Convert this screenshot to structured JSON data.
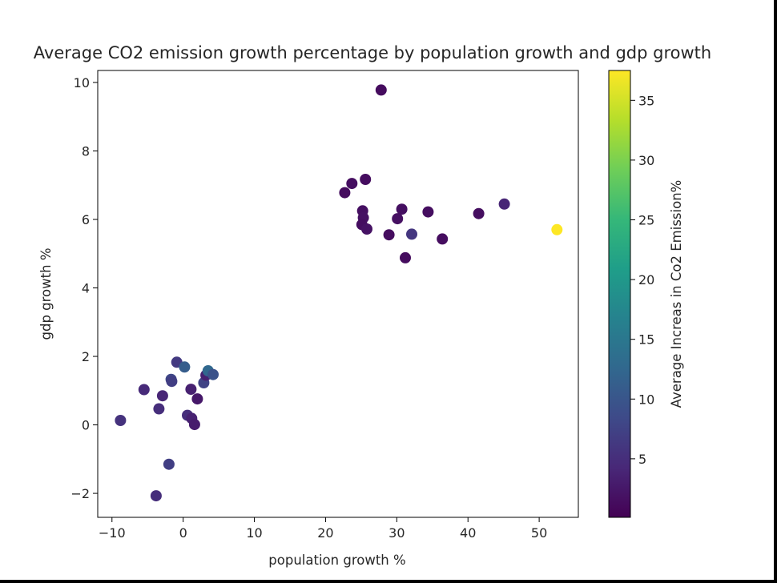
{
  "chart_data": {
    "type": "scatter",
    "title": "Average CO2 emission growth percentage by population growth and gdp growth",
    "xlabel": "population growth %",
    "ylabel": "gdp growth %",
    "xlim": [
      -12,
      55.5
    ],
    "ylim": [
      -2.7,
      10.35
    ],
    "xticks": [
      -10,
      0,
      10,
      20,
      30,
      40,
      50
    ],
    "yticks": [
      -2,
      0,
      2,
      4,
      6,
      8,
      10
    ],
    "xtick_labels": [
      "−10",
      "0",
      "10",
      "20",
      "30",
      "40",
      "50"
    ],
    "ytick_labels": [
      "−2",
      "0",
      "2",
      "4",
      "6",
      "8",
      "10"
    ],
    "grid": false,
    "colormap": "viridis",
    "colorbar": {
      "label": "Average Increas in Co2 Emission%",
      "range": [
        0.1,
        37.5
      ],
      "ticks": [
        5,
        10,
        15,
        20,
        25,
        30,
        35
      ],
      "tick_labels": [
        "5",
        "10",
        "15",
        "20",
        "25",
        "30",
        "35"
      ]
    },
    "points": [
      {
        "x": 27.8,
        "y": 9.78,
        "c": 1.2
      },
      {
        "x": 23.7,
        "y": 7.05,
        "c": 1.5
      },
      {
        "x": 25.6,
        "y": 7.17,
        "c": 1.4
      },
      {
        "x": 22.7,
        "y": 6.78,
        "c": 1.3
      },
      {
        "x": 25.2,
        "y": 6.25,
        "c": 1.6
      },
      {
        "x": 25.3,
        "y": 6.05,
        "c": 1.8
      },
      {
        "x": 25.1,
        "y": 5.85,
        "c": 1.5
      },
      {
        "x": 25.8,
        "y": 5.72,
        "c": 1.9
      },
      {
        "x": 28.9,
        "y": 5.55,
        "c": 1.4
      },
      {
        "x": 30.1,
        "y": 6.02,
        "c": 1.7
      },
      {
        "x": 30.7,
        "y": 6.3,
        "c": 1.6
      },
      {
        "x": 31.2,
        "y": 4.88,
        "c": 1.3
      },
      {
        "x": 32.1,
        "y": 5.57,
        "c": 6.0
      },
      {
        "x": 34.4,
        "y": 6.22,
        "c": 1.5
      },
      {
        "x": 36.4,
        "y": 5.43,
        "c": 1.4
      },
      {
        "x": 41.5,
        "y": 6.17,
        "c": 1.5
      },
      {
        "x": 45.1,
        "y": 6.45,
        "c": 4.0
      },
      {
        "x": 52.5,
        "y": 5.7,
        "c": 37.5
      },
      {
        "x": -8.8,
        "y": 0.13,
        "c": 5.5
      },
      {
        "x": -5.5,
        "y": 1.03,
        "c": 4.5
      },
      {
        "x": -3.4,
        "y": 0.47,
        "c": 5.0
      },
      {
        "x": -2.9,
        "y": 0.85,
        "c": 4.0
      },
      {
        "x": -1.7,
        "y": 1.33,
        "c": 8.0
      },
      {
        "x": -1.6,
        "y": 1.27,
        "c": 7.0
      },
      {
        "x": -0.9,
        "y": 1.83,
        "c": 6.5
      },
      {
        "x": 0.2,
        "y": 1.69,
        "c": 11.0
      },
      {
        "x": 0.6,
        "y": 0.28,
        "c": 5.0
      },
      {
        "x": 1.1,
        "y": 1.04,
        "c": 3.5
      },
      {
        "x": 1.2,
        "y": 0.19,
        "c": 3.5
      },
      {
        "x": 1.6,
        "y": 0.01,
        "c": 3.0
      },
      {
        "x": 2.0,
        "y": 0.76,
        "c": 2.5
      },
      {
        "x": 2.9,
        "y": 1.23,
        "c": 7.5
      },
      {
        "x": 3.2,
        "y": 1.45,
        "c": 3.5
      },
      {
        "x": 3.5,
        "y": 1.58,
        "c": 12.5
      },
      {
        "x": 4.2,
        "y": 1.47,
        "c": 9.5
      },
      {
        "x": -2.0,
        "y": -1.15,
        "c": 7.0
      },
      {
        "x": -3.8,
        "y": -2.07,
        "c": 5.0
      }
    ]
  }
}
